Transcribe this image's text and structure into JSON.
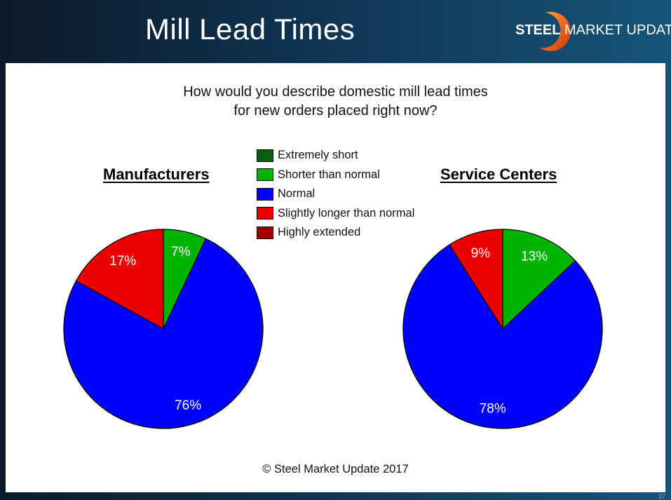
{
  "header": {
    "title": "Mill Lead Times"
  },
  "logo": {
    "brand_bold": "STEEL",
    "brand_regular": "MARKET UPDATE"
  },
  "question": {
    "line1": "How would you describe domestic mill lead times",
    "line2": "for new orders placed right now?"
  },
  "footer": {
    "copyright": "© Steel Market Update 2017"
  },
  "page_number": "37",
  "chart_data": [
    {
      "type": "pie",
      "title": "Manufacturers",
      "categories": [
        "Extremely short",
        "Shorter than normal",
        "Normal",
        "Slightly longer than normal",
        "Highly extended"
      ],
      "values": [
        0,
        7,
        76,
        17,
        0
      ],
      "labels": [
        "",
        "7%",
        "76%",
        "17%",
        ""
      ],
      "colors": [
        "#0b5e0b",
        "#00b400",
        "#0000ff",
        "#ee0000",
        "#a00000"
      ],
      "legend": "top-center"
    },
    {
      "type": "pie",
      "title": "Service Centers",
      "categories": [
        "Extremely short",
        "Shorter than normal",
        "Normal",
        "Slightly longer than normal",
        "Highly extended"
      ],
      "values": [
        0,
        13,
        78,
        9,
        0
      ],
      "labels": [
        "",
        "13%",
        "78%",
        "9%",
        ""
      ],
      "colors": [
        "#0b5e0b",
        "#00b400",
        "#0000ff",
        "#ee0000",
        "#a00000"
      ],
      "legend": "top-center"
    }
  ]
}
